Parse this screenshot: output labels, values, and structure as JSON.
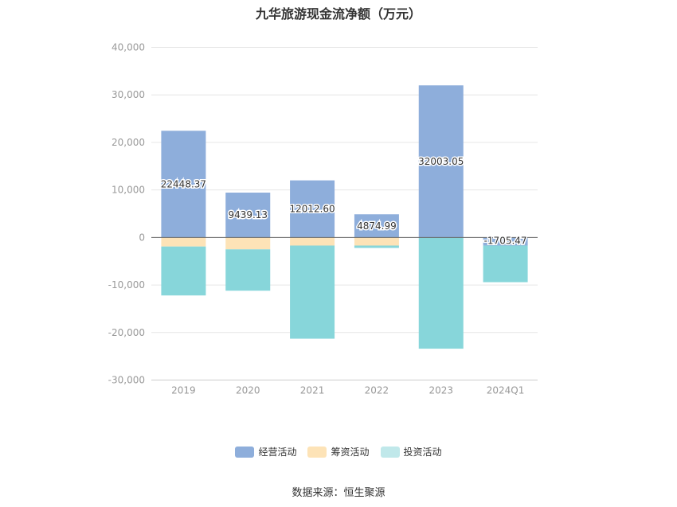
{
  "chart_data": {
    "type": "bar",
    "stacked": true,
    "title": "九华旅游现金流净额（万元）",
    "categories": [
      "2019",
      "2020",
      "2021",
      "2022",
      "2023",
      "2024Q1"
    ],
    "series": [
      {
        "name": "经营活动",
        "color": "#8eaedb",
        "values": [
          22448.37,
          9439.13,
          12012.6,
          4874.99,
          32003.05,
          -1705.47
        ]
      },
      {
        "name": "筹资活动",
        "color": "#fde3b7",
        "values": [
          -1900,
          -2500,
          -1700,
          -1700,
          0,
          0
        ]
      },
      {
        "name": "投资活动",
        "color": "#87d6da",
        "values": [
          -10300,
          -8700,
          -19600,
          -500,
          -23400,
          -7700
        ]
      }
    ],
    "data_labels": [
      "22448.37",
      "9439.13",
      "12012.60",
      "4874.99",
      "32003.05",
      "-1705.47"
    ],
    "y_ticks": [
      "40,000",
      "30,000",
      "20,000",
      "10,000",
      "0",
      "-10,000",
      "-20,000",
      "-30,000"
    ],
    "ylim": [
      -30000,
      40000
    ],
    "legend_position": "bottom",
    "legend_colors": [
      "#8eaedb",
      "#fde3b7",
      "#c0e8ea"
    ],
    "grid": true
  },
  "source": "数据来源：恒生聚源"
}
